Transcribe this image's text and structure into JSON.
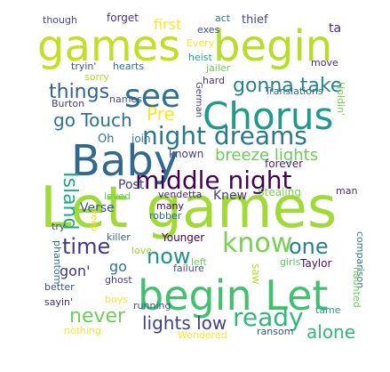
{
  "words": [
    {
      "text": "Let games",
      "color": "#a0da39"
    },
    {
      "text": "games",
      "color": "#c2df23"
    },
    {
      "text": "begin",
      "color": "#b5de2b"
    },
    {
      "text": "Chorus",
      "color": "#1f9a8a"
    },
    {
      "text": "Baby",
      "color": "#31688e"
    },
    {
      "text": "begin Let",
      "color": "#44bf70"
    },
    {
      "text": "middle night",
      "color": "#440154"
    },
    {
      "text": "night dreams",
      "color": "#2a788e"
    },
    {
      "text": "see",
      "color": "#2c728e"
    },
    {
      "text": "gonna take",
      "color": "#25838e"
    },
    {
      "text": "things",
      "color": "#33628d"
    },
    {
      "text": "know",
      "color": "#7ad151"
    },
    {
      "text": "one",
      "color": "#26818e"
    },
    {
      "text": "ready",
      "color": "#35b779"
    },
    {
      "text": "Island",
      "color": "#22a884"
    },
    {
      "text": "breeze lights",
      "color": "#6ccd5a"
    },
    {
      "text": "go Touch",
      "color": "#2c728e"
    },
    {
      "text": "Pre",
      "color": "#fde725"
    },
    {
      "text": "time",
      "color": "#443983"
    },
    {
      "text": "now",
      "color": "#21918c"
    },
    {
      "text": "never",
      "color": "#6ece58"
    },
    {
      "text": "lights low",
      "color": "#424086"
    },
    {
      "text": "alone",
      "color": "#35b779"
    },
    {
      "text": "gon'",
      "color": "#46337e"
    },
    {
      "text": "go",
      "color": "#2a788e"
    },
    {
      "text": "Verse",
      "color": "#39568c"
    },
    {
      "text": "Post",
      "color": "#424086"
    },
    {
      "text": "Knew",
      "color": "#443983"
    },
    {
      "text": "first",
      "color": "#fde725"
    },
    {
      "text": "thief",
      "color": "#3e4989"
    },
    {
      "text": "forget",
      "color": "#46337e"
    },
    {
      "text": "though",
      "color": "#3e4989"
    },
    {
      "text": "exes",
      "color": "#3b528b"
    },
    {
      "text": "act",
      "color": "#2a788e"
    },
    {
      "text": "ta",
      "color": "#472d7b"
    },
    {
      "text": "Every",
      "color": "#fde725"
    },
    {
      "text": "heist",
      "color": "#22a884"
    },
    {
      "text": "jailer",
      "color": "#6ece58"
    },
    {
      "text": "move",
      "color": "#472d7b"
    },
    {
      "text": "tryin'",
      "color": "#3b528b"
    },
    {
      "text": "hearts",
      "color": "#2c728e"
    },
    {
      "text": "sorry",
      "color": "#b5de2b"
    },
    {
      "text": "hard",
      "color": "#46337e"
    },
    {
      "text": "Translations",
      "color": "#31688e"
    },
    {
      "text": "names",
      "color": "#3b528b"
    },
    {
      "text": "Burton",
      "color": "#433e85"
    },
    {
      "text": "German",
      "color": "#443983"
    },
    {
      "text": "Holdin'",
      "color": "#7ad151"
    },
    {
      "text": "Oh",
      "color": "#2a788e"
    },
    {
      "text": "join",
      "color": "#2a788e"
    },
    {
      "text": "known",
      "color": "#414487"
    },
    {
      "text": "forever",
      "color": "#482878"
    },
    {
      "text": "Stealing",
      "color": "#7ad151"
    },
    {
      "text": "loved",
      "color": "#6ece58"
    },
    {
      "text": "vendetta",
      "color": "#482878"
    },
    {
      "text": "man",
      "color": "#472d7b"
    },
    {
      "text": "many",
      "color": "#440154"
    },
    {
      "text": "robber",
      "color": "#31688e"
    },
    {
      "text": "keep",
      "color": "#e5e419"
    },
    {
      "text": "try",
      "color": "#3b528b"
    },
    {
      "text": "killer",
      "color": "#31688e"
    },
    {
      "text": "love",
      "color": "#a0da39"
    },
    {
      "text": "Younger",
      "color": "#440154"
    },
    {
      "text": "phantom",
      "color": "#2c728e"
    },
    {
      "text": "saw",
      "color": "#b5de2b"
    },
    {
      "text": "left",
      "color": "#6ece58"
    },
    {
      "text": "failure",
      "color": "#3b528b"
    },
    {
      "text": "girls",
      "color": "#5ec962"
    },
    {
      "text": "Taylor",
      "color": "#471063"
    },
    {
      "text": "comparison",
      "color": "#2a788e"
    },
    {
      "text": "ghost",
      "color": "#433e85"
    },
    {
      "text": "better",
      "color": "#3b528b"
    },
    {
      "text": "boys",
      "color": "#fde725"
    },
    {
      "text": "sayin'",
      "color": "#482878"
    },
    {
      "text": "running",
      "color": "#39568c"
    },
    {
      "text": "tame",
      "color": "#20a486"
    },
    {
      "text": "haunted",
      "color": "#6ece58"
    },
    {
      "text": "nothing",
      "color": "#fde725"
    },
    {
      "text": "Wondered",
      "color": "#fde725"
    },
    {
      "text": "ransom",
      "color": "#3b528b"
    }
  ]
}
